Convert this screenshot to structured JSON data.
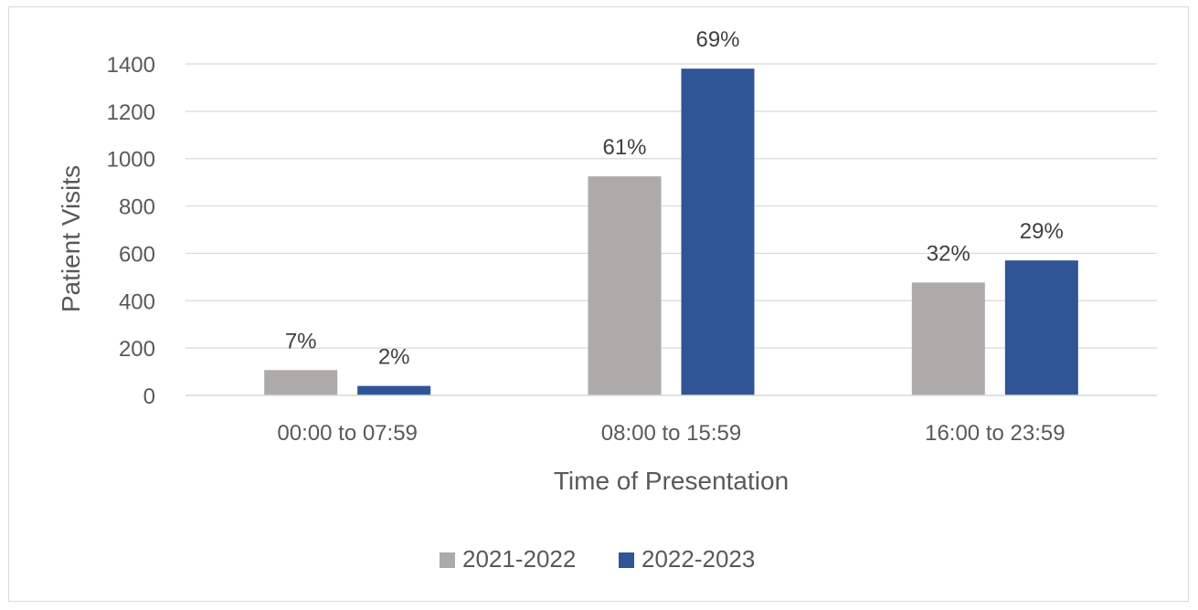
{
  "chart_data": {
    "type": "bar",
    "xlabel": "Time of Presentation",
    "ylabel": "Patient Visits",
    "categories": [
      "00:00 to 07:59",
      "08:00 to 15:59",
      "16:00 to 23:59"
    ],
    "ylim": [
      0,
      1400
    ],
    "yticks": [
      0,
      200,
      400,
      600,
      800,
      1000,
      1200,
      1400
    ],
    "grid": true,
    "legend_position": "bottom",
    "series": [
      {
        "name": "2021-2022",
        "color": "#aeaaaa",
        "values": [
          107,
          925,
          477
        ],
        "data_labels": [
          "7%",
          "61%",
          "32%"
        ]
      },
      {
        "name": "2022-2023",
        "color": "#2f5597",
        "values": [
          40,
          1380,
          570
        ],
        "data_labels": [
          "2%",
          "69%",
          "29%"
        ]
      }
    ]
  }
}
